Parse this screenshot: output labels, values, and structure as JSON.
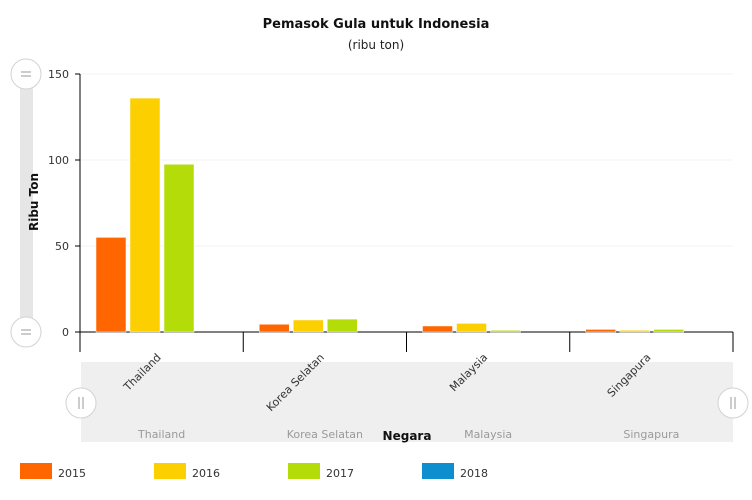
{
  "chart_data": {
    "type": "bar",
    "title": "Pemasok Gula untuk Indonesia",
    "subtitle": "(ribu ton)",
    "xlabel": "Negara",
    "ylabel": "Ribu Ton",
    "categories": [
      "Thailand",
      "Korea Selatan",
      "Malaysia",
      "Singapura"
    ],
    "series": [
      {
        "name": "2015",
        "color": "#ff6600",
        "values": [
          55,
          4.5,
          3.5,
          1.5
        ]
      },
      {
        "name": "2016",
        "color": "#fccf00",
        "values": [
          136,
          7,
          5,
          1
        ]
      },
      {
        "name": "2017",
        "color": "#b3dc09",
        "values": [
          97.5,
          7.5,
          1,
          1.5
        ]
      },
      {
        "name": "2018",
        "color": "#0d8ecf",
        "values": [
          0,
          0,
          0,
          0
        ]
      }
    ],
    "ylim": [
      0,
      150
    ],
    "yticks": [
      0,
      50,
      100,
      150
    ],
    "grid": true,
    "legend_position": "bottom"
  }
}
